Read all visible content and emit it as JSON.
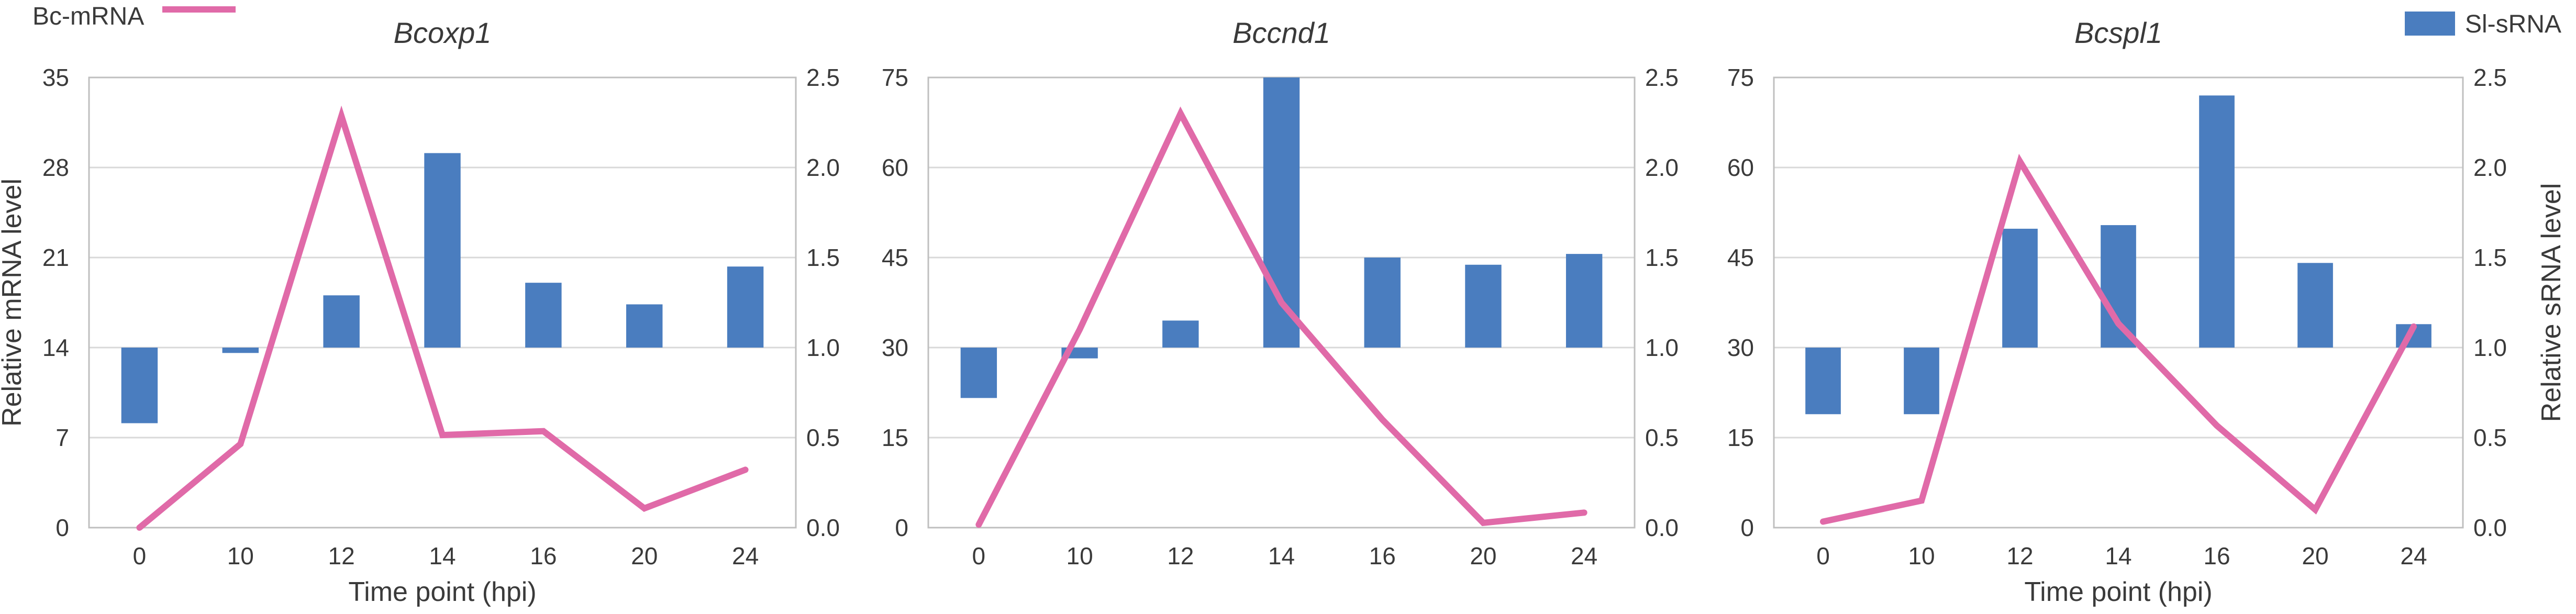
{
  "colors": {
    "mrna": "#e06aa8",
    "srna": "#4a7dbf",
    "grid": "#d9d9d9",
    "frame": "#bfbfbf",
    "text": "#3a3a3a"
  },
  "legend": {
    "mrna": "Bc-mRNA",
    "srna": "Sl-sRNA"
  },
  "ylabel_left": "Relative mRNA level",
  "ylabel_right": "Relative sRNA level",
  "chart_data": [
    {
      "type": "bar+line",
      "title": "Bcoxp1",
      "xlabel": "Time point (hpi)",
      "categories": [
        "0",
        "10",
        "12",
        "14",
        "16",
        "20",
        "24"
      ],
      "y_left": {
        "ticks": [
          "0",
          "7",
          "14",
          "21",
          "28",
          "35"
        ],
        "lim": [
          0,
          35
        ]
      },
      "y_right": {
        "ticks": [
          "0.0",
          "0.5",
          "1.0",
          "1.5",
          "2.0",
          "2.5"
        ],
        "lim": [
          0,
          2.5
        ]
      },
      "bar_baseline": 1.0,
      "series": [
        {
          "name": "Sl-sRNA",
          "type": "bar",
          "axis": "right",
          "values": [
            0.58,
            0.97,
            1.29,
            2.08,
            1.36,
            1.24,
            1.45
          ]
        },
        {
          "name": "Bc-mRNA",
          "type": "line",
          "axis": "left",
          "values": [
            0.0,
            6.5,
            32.0,
            7.2,
            7.5,
            1.5,
            4.5
          ]
        }
      ],
      "show_left_label": true,
      "show_right_label": false
    },
    {
      "type": "bar+line",
      "title": "Bccnd1",
      "xlabel": "",
      "categories": [
        "0",
        "10",
        "12",
        "14",
        "16",
        "20",
        "24"
      ],
      "y_left": {
        "ticks": [
          "0",
          "15",
          "30",
          "45",
          "60",
          "75"
        ],
        "lim": [
          0,
          75
        ]
      },
      "y_right": {
        "ticks": [
          "0.0",
          "0.5",
          "1.0",
          "1.5",
          "2.0",
          "2.5"
        ],
        "lim": [
          0,
          2.5
        ]
      },
      "bar_baseline": 1.0,
      "series": [
        {
          "name": "Sl-sRNA",
          "type": "bar",
          "axis": "right",
          "values": [
            0.72,
            0.94,
            1.15,
            2.5,
            1.5,
            1.46,
            1.52
          ]
        },
        {
          "name": "Bc-mRNA",
          "type": "line",
          "axis": "left",
          "values": [
            0.5,
            33.0,
            69.0,
            37.5,
            18.0,
            0.8,
            2.5
          ]
        }
      ],
      "show_left_label": false,
      "show_right_label": false
    },
    {
      "type": "bar+line",
      "title": "Bcspl1",
      "xlabel": "Time point (hpi)",
      "categories": [
        "0",
        "10",
        "12",
        "14",
        "16",
        "20",
        "24"
      ],
      "y_left": {
        "ticks": [
          "0",
          "15",
          "30",
          "45",
          "60",
          "75"
        ],
        "lim": [
          0,
          75
        ]
      },
      "y_right": {
        "ticks": [
          "0.0",
          "0.5",
          "1.0",
          "1.5",
          "2.0",
          "2.5"
        ],
        "lim": [
          0,
          2.5
        ]
      },
      "bar_baseline": 1.0,
      "series": [
        {
          "name": "Sl-sRNA",
          "type": "bar",
          "axis": "right",
          "values": [
            0.63,
            0.63,
            1.66,
            1.68,
            2.4,
            1.47,
            1.13
          ]
        },
        {
          "name": "Bc-mRNA",
          "type": "line",
          "axis": "left",
          "values": [
            1.0,
            4.5,
            61.0,
            34.0,
            17.0,
            3.0,
            33.5
          ]
        }
      ],
      "show_left_label": false,
      "show_right_label": true
    }
  ]
}
